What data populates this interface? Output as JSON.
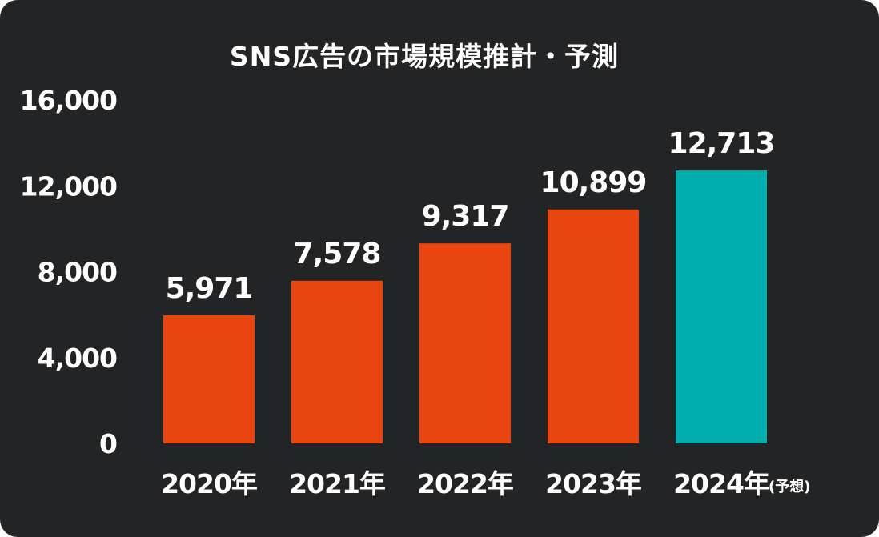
{
  "chart_data": {
    "type": "bar",
    "title": "SNS広告の市場規模推計・予測",
    "categories": [
      "2020年",
      "2021年",
      "2022年",
      "2023年",
      "2024年"
    ],
    "category_notes": [
      "",
      "",
      "",
      "",
      "(予想)"
    ],
    "values": [
      5971,
      7578,
      9317,
      10899,
      12713
    ],
    "value_labels": [
      "5,971",
      "7,578",
      "9,317",
      "10,899",
      "12,713"
    ],
    "yticks": [
      0,
      4000,
      8000,
      12000,
      16000
    ],
    "ytick_labels": [
      "0",
      "4,000",
      "8,000",
      "12,000",
      "16,000"
    ],
    "ylim": [
      0,
      16000
    ],
    "xlabel": "",
    "ylabel": "",
    "grid": false,
    "colors": {
      "actual": "#E8460E",
      "forecast": "#00AEAE",
      "background": "#232425",
      "text": "#FFFFFF"
    },
    "bar_colors": [
      "#E8460E",
      "#E8460E",
      "#E8460E",
      "#E8460E",
      "#00AEAE"
    ]
  }
}
